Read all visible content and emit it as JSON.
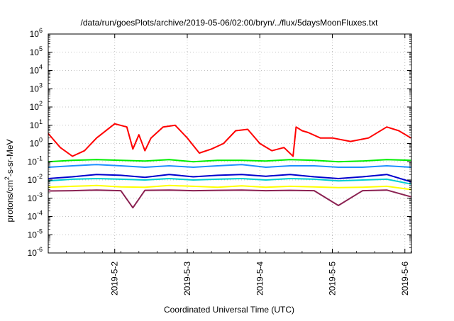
{
  "chart_data": {
    "type": "line",
    "title": "/data/run/goesPlots/archive/2019-05-06/02:00/bryn/../flux/5daysMoonFluxes.txt",
    "xlabel": "Coordinated Universal Time (UTC)",
    "ylabel": {
      "prefix": "protons/cm",
      "sup": "2",
      "suffix": "-s-sr-MeV"
    },
    "yscale": "log",
    "ylim": [
      1e-06,
      1000000.0
    ],
    "xlim": [
      "2019-05-01T02:00",
      "2019-05-06T02:10"
    ],
    "grid": true,
    "legend": "none",
    "x_ticks": [
      "2019-5-2",
      "2019-5-3",
      "2019-5-4",
      "2019-5-5",
      "2019-5-6"
    ],
    "y_ticks": [
      {
        "base": "10",
        "exp": "-6"
      },
      {
        "base": "10",
        "exp": "-5"
      },
      {
        "base": "10",
        "exp": "-4"
      },
      {
        "base": "10",
        "exp": "-3"
      },
      {
        "base": "10",
        "exp": "-2"
      },
      {
        "base": "10",
        "exp": "-1"
      },
      {
        "base": "10",
        "exp": "0"
      },
      {
        "base": "10",
        "exp": "1"
      },
      {
        "base": "10",
        "exp": "2"
      },
      {
        "base": "10",
        "exp": "3"
      },
      {
        "base": "10",
        "exp": "4"
      },
      {
        "base": "10",
        "exp": "5"
      },
      {
        "base": "10",
        "exp": "6"
      }
    ],
    "series": [
      {
        "color": "#ff0000",
        "x": [
          "2019-05-01T02:00",
          "2019-05-01T06:00",
          "2019-05-01T10:00",
          "2019-05-01T14:00",
          "2019-05-01T18:00",
          "2019-05-02T00:00",
          "2019-05-02T04:00",
          "2019-05-02T06:00",
          "2019-05-02T08:00",
          "2019-05-02T10:00",
          "2019-05-02T12:00",
          "2019-05-02T16:00",
          "2019-05-02T20:00",
          "2019-05-03T00:00",
          "2019-05-03T04:00",
          "2019-05-03T08:00",
          "2019-05-03T12:00",
          "2019-05-03T16:00",
          "2019-05-03T20:00",
          "2019-05-04T00:00",
          "2019-05-04T04:00",
          "2019-05-04T08:00",
          "2019-05-04T11:00",
          "2019-05-04T12:00",
          "2019-05-04T14:00",
          "2019-05-04T16:00",
          "2019-05-04T20:00",
          "2019-05-05T00:00",
          "2019-05-05T06:00",
          "2019-05-05T12:00",
          "2019-05-05T18:00",
          "2019-05-05T22:00",
          "2019-05-06T02:00"
        ],
        "y": [
          3.5,
          0.6,
          0.2,
          0.4,
          2,
          12,
          8,
          0.5,
          3,
          0.4,
          2,
          8,
          10,
          2,
          0.3,
          0.5,
          1,
          5,
          6,
          1,
          0.4,
          0.6,
          0.2,
          8,
          5,
          4,
          2,
          2,
          1.3,
          2,
          8,
          5,
          2
        ]
      },
      {
        "color": "#00ee00",
        "x": [
          "2019-05-01T02:00",
          "2019-05-01T10:00",
          "2019-05-01T18:00",
          "2019-05-02T02:00",
          "2019-05-02T10:00",
          "2019-05-02T18:00",
          "2019-05-03T02:00",
          "2019-05-03T10:00",
          "2019-05-03T18:00",
          "2019-05-04T02:00",
          "2019-05-04T10:00",
          "2019-05-04T18:00",
          "2019-05-05T02:00",
          "2019-05-05T10:00",
          "2019-05-05T18:00",
          "2019-05-06T02:00"
        ],
        "y": [
          0.1,
          0.12,
          0.13,
          0.12,
          0.11,
          0.13,
          0.1,
          0.12,
          0.12,
          0.11,
          0.13,
          0.12,
          0.1,
          0.11,
          0.13,
          0.12
        ]
      },
      {
        "color": "#1e90ff",
        "x": [
          "2019-05-01T02:00",
          "2019-05-01T10:00",
          "2019-05-01T18:00",
          "2019-05-02T02:00",
          "2019-05-02T10:00",
          "2019-05-02T18:00",
          "2019-05-03T02:00",
          "2019-05-03T10:00",
          "2019-05-03T18:00",
          "2019-05-04T02:00",
          "2019-05-04T10:00",
          "2019-05-04T18:00",
          "2019-05-05T02:00",
          "2019-05-05T10:00",
          "2019-05-05T18:00",
          "2019-05-06T02:00"
        ],
        "y": [
          0.05,
          0.06,
          0.07,
          0.06,
          0.05,
          0.06,
          0.05,
          0.06,
          0.07,
          0.05,
          0.06,
          0.06,
          0.05,
          0.05,
          0.06,
          0.05
        ]
      },
      {
        "color": "#0000cd",
        "x": [
          "2019-05-01T02:00",
          "2019-05-01T10:00",
          "2019-05-01T18:00",
          "2019-05-02T02:00",
          "2019-05-02T10:00",
          "2019-05-02T18:00",
          "2019-05-03T02:00",
          "2019-05-03T10:00",
          "2019-05-03T18:00",
          "2019-05-04T02:00",
          "2019-05-04T10:00",
          "2019-05-04T18:00",
          "2019-05-05T02:00",
          "2019-05-05T10:00",
          "2019-05-05T18:00",
          "2019-05-06T02:00"
        ],
        "y": [
          0.012,
          0.015,
          0.02,
          0.018,
          0.014,
          0.02,
          0.015,
          0.018,
          0.02,
          0.016,
          0.02,
          0.015,
          0.012,
          0.015,
          0.02,
          0.008
        ]
      },
      {
        "color": "#00ced1",
        "x": [
          "2019-05-01T02:00",
          "2019-05-01T10:00",
          "2019-05-01T18:00",
          "2019-05-02T02:00",
          "2019-05-02T10:00",
          "2019-05-02T18:00",
          "2019-05-03T02:00",
          "2019-05-03T10:00",
          "2019-05-03T18:00",
          "2019-05-04T02:00",
          "2019-05-04T10:00",
          "2019-05-04T18:00",
          "2019-05-05T02:00",
          "2019-05-05T10:00",
          "2019-05-05T18:00",
          "2019-05-06T02:00"
        ],
        "y": [
          0.009,
          0.011,
          0.012,
          0.011,
          0.01,
          0.012,
          0.01,
          0.011,
          0.012,
          0.01,
          0.012,
          0.011,
          0.009,
          0.01,
          0.011,
          0.006
        ]
      },
      {
        "color": "#ffff00",
        "x": [
          "2019-05-01T02:00",
          "2019-05-01T10:00",
          "2019-05-01T18:00",
          "2019-05-02T02:00",
          "2019-05-02T10:00",
          "2019-05-02T18:00",
          "2019-05-03T02:00",
          "2019-05-03T10:00",
          "2019-05-03T18:00",
          "2019-05-04T02:00",
          "2019-05-04T10:00",
          "2019-05-04T18:00",
          "2019-05-05T02:00",
          "2019-05-05T10:00",
          "2019-05-05T18:00",
          "2019-05-06T02:00"
        ],
        "y": [
          0.004,
          0.0045,
          0.005,
          0.0042,
          0.004,
          0.005,
          0.0045,
          0.004,
          0.0048,
          0.004,
          0.0045,
          0.0042,
          0.0038,
          0.004,
          0.0045,
          0.003
        ]
      },
      {
        "color": "#8b2252",
        "x": [
          "2019-05-01T02:00",
          "2019-05-01T10:00",
          "2019-05-01T18:00",
          "2019-05-02T02:00",
          "2019-05-02T06:00",
          "2019-05-02T10:00",
          "2019-05-02T18:00",
          "2019-05-03T02:00",
          "2019-05-03T10:00",
          "2019-05-03T18:00",
          "2019-05-04T02:00",
          "2019-05-04T10:00",
          "2019-05-04T18:00",
          "2019-05-05T02:00",
          "2019-05-05T10:00",
          "2019-05-05T18:00",
          "2019-05-06T02:00"
        ],
        "y": [
          0.0025,
          0.0026,
          0.0028,
          0.0026,
          0.0003,
          0.0027,
          0.0028,
          0.0026,
          0.0027,
          0.0028,
          0.0026,
          0.0027,
          0.0026,
          0.0004,
          0.0026,
          0.0028,
          0.0012
        ]
      }
    ]
  }
}
